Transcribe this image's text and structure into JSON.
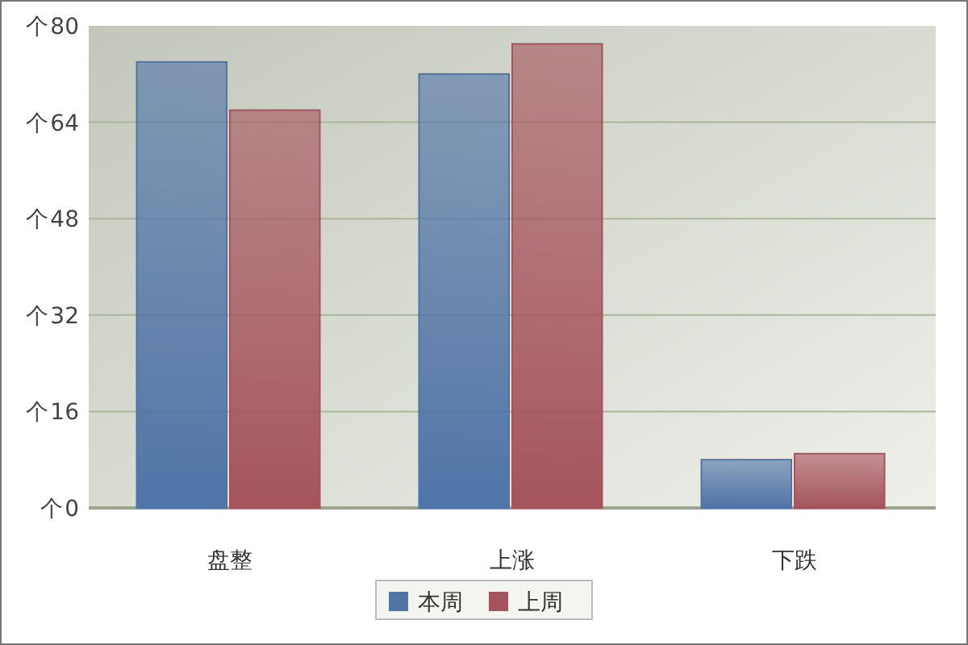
{
  "chart_data": {
    "type": "bar",
    "categories": [
      "盘整",
      "上涨",
      "下跌"
    ],
    "series": [
      {
        "name": "本周",
        "color": "#4f74a6",
        "values": [
          74,
          72,
          8
        ]
      },
      {
        "name": "上周",
        "color": "#a5545c",
        "values": [
          66,
          77,
          9
        ]
      }
    ],
    "ylim": [
      0,
      80
    ],
    "yticks": [
      0,
      16,
      32,
      48,
      64,
      80
    ],
    "ylabel": "个",
    "grid": "y",
    "legend": "bottom"
  }
}
